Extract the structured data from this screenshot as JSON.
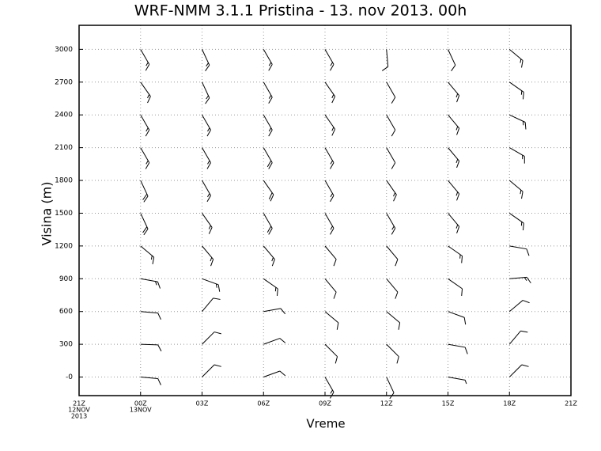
{
  "chart_data": {
    "type": "barb",
    "title": "WRF-NMM 3.1.1 Pristina - 13. nov 2013. 00h",
    "xlabel": "Vreme",
    "ylabel": "Visina (m)",
    "xlim": [
      0,
      24
    ],
    "xticks": [
      {
        "value": 0,
        "label": [
          "21Z",
          "12NOV",
          "2013"
        ]
      },
      {
        "value": 3,
        "label": [
          "00Z",
          "13NOV"
        ]
      },
      {
        "value": 6,
        "label": [
          "03Z"
        ]
      },
      {
        "value": 9,
        "label": [
          "06Z"
        ]
      },
      {
        "value": 12,
        "label": [
          "09Z"
        ]
      },
      {
        "value": 15,
        "label": [
          "12Z"
        ]
      },
      {
        "value": 18,
        "label": [
          "15Z"
        ]
      },
      {
        "value": 21,
        "label": [
          "18Z"
        ]
      },
      {
        "value": 24,
        "label": [
          "21Z"
        ]
      }
    ],
    "ylim": [
      -170,
      3220
    ],
    "yticks": [
      {
        "value": 0,
        "label": "-0"
      },
      300,
      600,
      900,
      1200,
      1500,
      1800,
      2100,
      2400,
      2700,
      3000
    ],
    "grid": true,
    "color": "#000000",
    "levels": [
      0,
      300,
      600,
      900,
      1200,
      1500,
      1800,
      2100,
      2400,
      2700,
      3000
    ],
    "barbs": [
      {
        "x": 3,
        "directions": [
          95,
          92,
          95,
          100,
          130,
          155,
          155,
          150,
          150,
          145,
          150
        ],
        "speeds": [
          10,
          10,
          10,
          15,
          15,
          20,
          20,
          15,
          15,
          15,
          15
        ]
      },
      {
        "x": 6,
        "directions": [
          45,
          45,
          40,
          110,
          140,
          145,
          150,
          150,
          150,
          155,
          155
        ],
        "speeds": [
          10,
          10,
          10,
          15,
          15,
          15,
          15,
          15,
          15,
          15,
          15
        ]
      },
      {
        "x": 9,
        "directions": [
          70,
          70,
          80,
          125,
          140,
          150,
          145,
          150,
          150,
          150,
          150
        ],
        "speeds": [
          10,
          10,
          10,
          15,
          15,
          20,
          20,
          20,
          15,
          15,
          15
        ]
      },
      {
        "x": 12,
        "directions": [
          150,
          135,
          130,
          140,
          140,
          150,
          150,
          150,
          145,
          145,
          150
        ],
        "speeds": [
          15,
          10,
          10,
          10,
          10,
          15,
          15,
          15,
          15,
          15,
          15
        ]
      },
      {
        "x": 15,
        "directions": [
          155,
          135,
          130,
          140,
          140,
          150,
          145,
          150,
          150,
          150,
          175
        ],
        "speeds": [
          10,
          10,
          10,
          10,
          10,
          15,
          15,
          10,
          10,
          10,
          10
        ]
      },
      {
        "x": 18,
        "directions": [
          100,
          100,
          110,
          125,
          125,
          140,
          140,
          140,
          140,
          140,
          155
        ],
        "speeds": [
          5,
          10,
          10,
          10,
          15,
          15,
          15,
          15,
          15,
          15,
          10
        ]
      },
      {
        "x": 21,
        "directions": [
          45,
          40,
          50,
          85,
          100,
          125,
          130,
          120,
          115,
          125,
          130
        ],
        "speeds": [
          10,
          10,
          10,
          15,
          10,
          15,
          15,
          15,
          15,
          15,
          15
        ]
      }
    ]
  }
}
